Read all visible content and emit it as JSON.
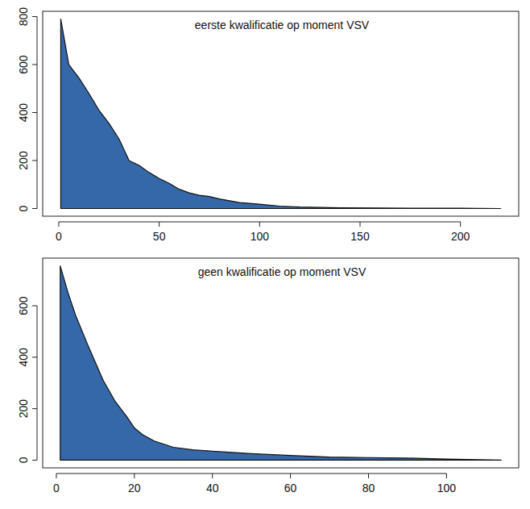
{
  "chart_data": [
    {
      "type": "area",
      "title": "eerste kwalificatie op moment VSV",
      "x": [
        1,
        5,
        10,
        15,
        20,
        25,
        30,
        35,
        40,
        45,
        50,
        55,
        60,
        65,
        70,
        75,
        80,
        90,
        100,
        110,
        120,
        140,
        160,
        180,
        200,
        220
      ],
      "values": [
        790,
        600,
        545,
        480,
        410,
        355,
        290,
        200,
        180,
        150,
        125,
        105,
        80,
        65,
        55,
        50,
        40,
        25,
        18,
        10,
        6,
        3,
        2,
        1,
        1,
        0
      ],
      "color": "#3568a8",
      "xlim": [
        -8,
        229
      ],
      "ylim": [
        -32,
        822
      ],
      "xticks": [
        0,
        50,
        100,
        150,
        200
      ],
      "yticks": [
        0,
        200,
        400,
        600,
        800
      ]
    },
    {
      "type": "area",
      "title": "geen kwalificatie op moment VSV",
      "x": [
        1,
        3,
        5,
        8,
        10,
        12,
        15,
        18,
        20,
        22,
        25,
        30,
        35,
        40,
        45,
        50,
        60,
        70,
        80,
        90,
        100,
        114
      ],
      "values": [
        755,
        650,
        560,
        450,
        380,
        310,
        230,
        170,
        125,
        100,
        75,
        50,
        40,
        35,
        30,
        25,
        18,
        12,
        10,
        8,
        4,
        0
      ],
      "color": "#3568a8",
      "xlim": [
        -3.5,
        118.5
      ],
      "ylim": [
        -30,
        785
      ],
      "xticks": [
        0,
        20,
        40,
        60,
        80,
        100
      ],
      "yticks": [
        0,
        200,
        400,
        600
      ]
    }
  ]
}
